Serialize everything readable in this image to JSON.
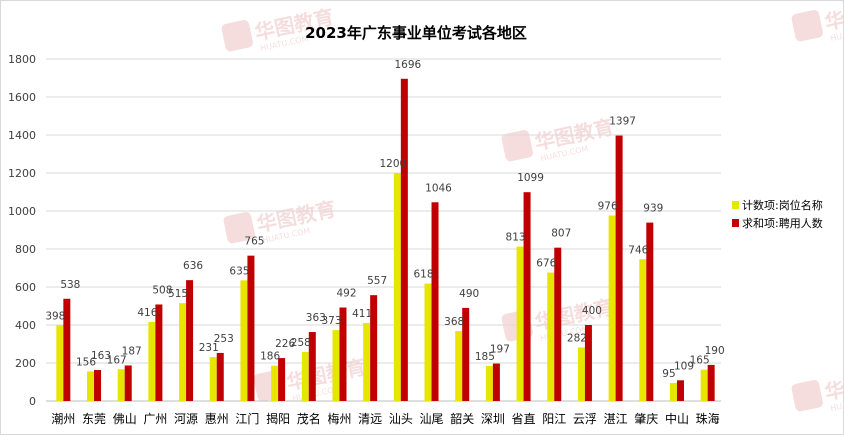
{
  "chart_data": {
    "type": "bar",
    "title": "2023年广东事业单位考试各地区",
    "xlabel": "",
    "ylabel": "",
    "ylim": [
      0,
      1800
    ],
    "yticks": [
      0,
      200,
      400,
      600,
      800,
      1000,
      1200,
      1400,
      1600,
      1800
    ],
    "grid": true,
    "legend_position": "right",
    "categories": [
      "潮州",
      "东莞",
      "佛山",
      "广州",
      "河源",
      "惠州",
      "江门",
      "揭阳",
      "茂名",
      "梅州",
      "清远",
      "汕头",
      "汕尾",
      "韶关",
      "深圳",
      "省直",
      "阳江",
      "云浮",
      "湛江",
      "肇庆",
      "中山",
      "珠海"
    ],
    "series": [
      {
        "name": "计数项:岗位名称",
        "color": "#e6e600",
        "values": [
          398,
          156,
          167,
          416,
          515,
          231,
          635,
          186,
          258,
          373,
          411,
          1200,
          618,
          368,
          185,
          813,
          676,
          282,
          976,
          746,
          95,
          165
        ]
      },
      {
        "name": "求和项:聘用人数",
        "color": "#c00000",
        "values": [
          538,
          163,
          187,
          508,
          636,
          253,
          765,
          226,
          363,
          492,
          557,
          1696,
          1046,
          490,
          197,
          1099,
          807,
          400,
          1397,
          939,
          109,
          190
        ]
      }
    ]
  },
  "watermark": {
    "text": "华图教育",
    "subtext": "HUATU.COM"
  }
}
